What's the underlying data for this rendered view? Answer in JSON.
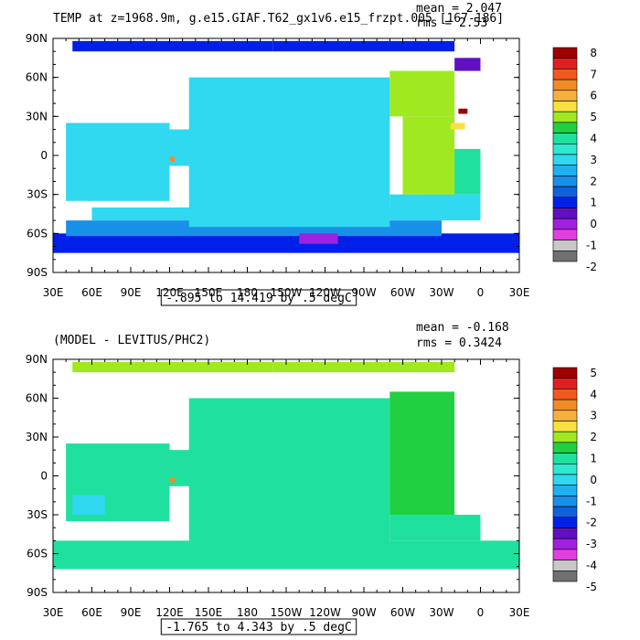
{
  "chart_data": [
    {
      "type": "heatmap",
      "title": "TEMP at z=1968.9m, g.e15.GIAF.T62_gx1v6.e15_frzpt.005 [167-186]",
      "stats": {
        "mean": "mean = 2.047",
        "rms": "rms = 2.53"
      },
      "range_text": "-.895 to 14.419 by .5 degC",
      "x_ticks": [
        "30E",
        "60E",
        "90E",
        "120E",
        "150E",
        "180",
        "150W",
        "120W",
        "90W",
        "60W",
        "30W",
        "0",
        "30E"
      ],
      "y_ticks": [
        "90N",
        "60N",
        "30N",
        "0",
        "30S",
        "60S",
        "90S"
      ],
      "legend": {
        "labels": [
          "8",
          "7",
          "6",
          "5",
          "4",
          "3",
          "2",
          "1",
          "0",
          "-1",
          "-2"
        ],
        "colors": [
          "#a00000",
          "#e02020",
          "#f05a1a",
          "#f08c28",
          "#f5b040",
          "#f8e040",
          "#a0e820",
          "#20d040",
          "#20e0a0",
          "#30e8d0",
          "#30d8f0",
          "#20b0f0",
          "#1890e8",
          "#1060e0",
          "#0020e8",
          "#6010c0",
          "#a020e0",
          "#e040e0",
          "#c8c8c8",
          "#707070"
        ]
      },
      "regions": [
        {
          "lon": [
            30,
            390
          ],
          "lat": [
            -75,
            -60
          ],
          "color": "#0020e8"
        },
        {
          "lon": [
            40,
            330
          ],
          "lat": [
            -62,
            -50
          ],
          "color": "#1890e8"
        },
        {
          "lon": [
            60,
            290
          ],
          "lat": [
            -50,
            -40
          ],
          "color": "#30d8f0"
        },
        {
          "lon": [
            40,
            120
          ],
          "lat": [
            -35,
            25
          ],
          "color": "#30d8f0"
        },
        {
          "lon": [
            120,
            160
          ],
          "lat": [
            -8,
            20
          ],
          "color": "#30d8f0"
        },
        {
          "lon": [
            135,
            290
          ],
          "lat": [
            -55,
            60
          ],
          "color": "#30d8f0"
        },
        {
          "lon": [
            290,
            360
          ],
          "lat": [
            -50,
            -30
          ],
          "color": "#30d8f0"
        },
        {
          "lon": [
            320,
            360
          ],
          "lat": [
            -30,
            5
          ],
          "color": "#20e0a0"
        },
        {
          "lon": [
            300,
            340
          ],
          "lat": [
            -30,
            30
          ],
          "color": "#a0e820"
        },
        {
          "lon": [
            290,
            340
          ],
          "lat": [
            30,
            65
          ],
          "color": "#a0e820"
        },
        {
          "lon": [
            220,
            250
          ],
          "lat": [
            -68,
            -60
          ],
          "color": "#a020e0"
        },
        {
          "lon": [
            45,
            200
          ],
          "lat": [
            80,
            88
          ],
          "color": "#0020e8"
        },
        {
          "lon": [
            200,
            340
          ],
          "lat": [
            80,
            88
          ],
          "color": "#0020e8"
        },
        {
          "lon": [
            340,
            360
          ],
          "lat": [
            65,
            75
          ],
          "color": "#6010c0"
        },
        {
          "lon": [
            337,
            348
          ],
          "lat": [
            20,
            25
          ],
          "color": "#f8e040"
        },
        {
          "lon": [
            343,
            350
          ],
          "lat": [
            32,
            36
          ],
          "color": "#a00000"
        },
        {
          "lon": [
            120,
            124
          ],
          "lat": [
            -5,
            -1
          ],
          "color": "#f08c28"
        }
      ]
    },
    {
      "type": "heatmap",
      "title": "(MODEL - LEVITUS/PHC2)",
      "stats": {
        "mean": "mean = -0.168",
        "rms": "rms = 0.3424"
      },
      "range_text": "-1.765 to 4.343 by .5 degC",
      "x_ticks": [
        "30E",
        "60E",
        "90E",
        "120E",
        "150E",
        "180",
        "150W",
        "120W",
        "90W",
        "60W",
        "30W",
        "0",
        "30E"
      ],
      "y_ticks": [
        "90N",
        "60N",
        "30N",
        "0",
        "30S",
        "60S",
        "90S"
      ],
      "legend": {
        "labels": [
          "5",
          "4",
          "3",
          "2",
          "1",
          "0",
          "-1",
          "-2",
          "-3",
          "-4",
          "-5"
        ],
        "colors": [
          "#a00000",
          "#e02020",
          "#f05a1a",
          "#f08c28",
          "#f5b040",
          "#f8e040",
          "#a0e820",
          "#20d040",
          "#20e0a0",
          "#30e8d0",
          "#30d8f0",
          "#20b0f0",
          "#1890e8",
          "#1060e0",
          "#0020e8",
          "#6010c0",
          "#a020e0",
          "#e040e0",
          "#c8c8c8",
          "#707070"
        ]
      },
      "regions": [
        {
          "lon": [
            30,
            390
          ],
          "lat": [
            -72,
            -50
          ],
          "color": "#20e0a0"
        },
        {
          "lon": [
            40,
            120
          ],
          "lat": [
            -35,
            25
          ],
          "color": "#20e0a0"
        },
        {
          "lon": [
            120,
            160
          ],
          "lat": [
            -8,
            20
          ],
          "color": "#20e0a0"
        },
        {
          "lon": [
            135,
            290
          ],
          "lat": [
            -55,
            60
          ],
          "color": "#20e0a0"
        },
        {
          "lon": [
            290,
            360
          ],
          "lat": [
            -50,
            -30
          ],
          "color": "#20e0a0"
        },
        {
          "lon": [
            290,
            340
          ],
          "lat": [
            -30,
            65
          ],
          "color": "#20d040"
        },
        {
          "lon": [
            45,
            200
          ],
          "lat": [
            80,
            88
          ],
          "color": "#a0e820"
        },
        {
          "lon": [
            200,
            340
          ],
          "lat": [
            80,
            88
          ],
          "color": "#a0e820"
        },
        {
          "lon": [
            45,
            70
          ],
          "lat": [
            -30,
            -15
          ],
          "color": "#30d8f0"
        },
        {
          "lon": [
            120,
            124
          ],
          "lat": [
            -5,
            -1
          ],
          "color": "#f08c28"
        }
      ]
    }
  ]
}
